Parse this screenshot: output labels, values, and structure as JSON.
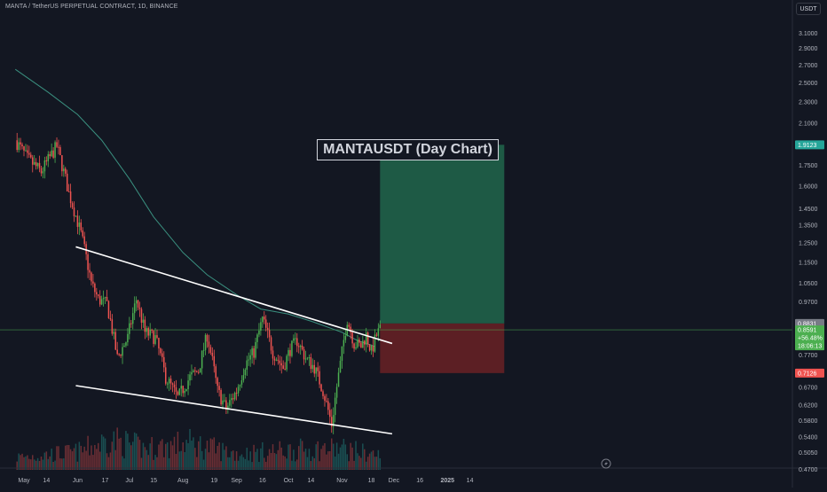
{
  "header": {
    "symbol_title": "MANTA / TetherUS PERPETUAL CONTRACT, 1D, BINANCE",
    "currency_label": "USDT"
  },
  "annotation": {
    "headline": "MANTAUSDT (Day Chart)"
  },
  "colors": {
    "background": "#131722",
    "up": "#26a69a",
    "up_bright": "#4caf50",
    "down": "#ef5350",
    "ma_line": "#3a8f7f",
    "trendline": "#ffffff",
    "target_zone": "#1e5a45",
    "stop_zone": "#5c1f24",
    "current_price_line": "#4caf50"
  },
  "chart_data": {
    "type": "candlestick",
    "scale": "log",
    "ylim": [
      0.469,
      3.2
    ],
    "y_ticks": [
      "3.1000",
      "2.9000",
      "2.7000",
      "2.5000",
      "2.3000",
      "2.1000",
      "1.7500",
      "1.6000",
      "1.4500",
      "1.3500",
      "1.2500",
      "1.1500",
      "1.0500",
      "0.9700",
      "0.7700",
      "0.6700",
      "0.6200",
      "0.5800",
      "0.5400",
      "0.5050",
      "0.4700"
    ],
    "x_ticks": [
      "May",
      "14",
      "Jun",
      "17",
      "Jul",
      "15",
      "Aug",
      "19",
      "Sep",
      "16",
      "Oct",
      "14",
      "Nov",
      "18",
      "Dec",
      "16",
      "2025",
      "14"
    ],
    "x_ticks_bold": [
      "2025"
    ],
    "price_tags": [
      {
        "label": "1.9123",
        "value": 1.9123,
        "kind": "target"
      },
      {
        "label": "0.8831",
        "value": 0.8831,
        "kind": "entry"
      },
      {
        "label": "0.8591",
        "sub1": "+56.48%",
        "sub2": "18:06:13",
        "value": 0.8591,
        "kind": "current"
      },
      {
        "label": "0.7126",
        "value": 0.7126,
        "kind": "stop"
      }
    ],
    "position": {
      "target": 1.9123,
      "entry": 0.8831,
      "stop": 0.7126
    },
    "trendlines": [
      {
        "name": "upper",
        "start": {
          "date": "2024-05-31",
          "price": 1.23
        },
        "end": {
          "date": "2024-11-30",
          "price": 0.81
        }
      },
      {
        "name": "lower",
        "start": {
          "date": "2024-05-31",
          "price": 0.675
        },
        "end": {
          "date": "2024-11-30",
          "price": 0.548
        }
      }
    ],
    "moving_average": {
      "dates": [
        "2024-04-26",
        "2024-05-15",
        "2024-06-01",
        "2024-06-15",
        "2024-07-01",
        "2024-07-15",
        "2024-08-01",
        "2024-08-15",
        "2024-09-01",
        "2024-09-15",
        "2024-10-01",
        "2024-10-15",
        "2024-11-01",
        "2024-11-10",
        "2024-11-20"
      ],
      "values": [
        2.65,
        2.4,
        2.18,
        1.95,
        1.65,
        1.4,
        1.2,
        1.09,
        1.0,
        0.94,
        0.92,
        0.89,
        0.85,
        0.82,
        0.8
      ]
    },
    "price_path": {
      "dates": [
        "2024-04-26",
        "2024-05-03",
        "2024-05-11",
        "2024-05-20",
        "2024-05-27",
        "2024-06-03",
        "2024-06-09",
        "2024-06-13",
        "2024-06-18",
        "2024-06-24",
        "2024-06-30",
        "2024-07-05",
        "2024-07-10",
        "2024-07-16",
        "2024-07-22",
        "2024-07-29",
        "2024-08-05",
        "2024-08-10",
        "2024-08-15",
        "2024-08-21",
        "2024-08-26",
        "2024-09-01",
        "2024-09-06",
        "2024-09-11",
        "2024-09-16",
        "2024-09-22",
        "2024-09-28",
        "2024-10-02",
        "2024-10-06",
        "2024-10-11",
        "2024-10-16",
        "2024-10-21",
        "2024-10-26",
        "2024-10-31",
        "2024-11-04",
        "2024-11-08",
        "2024-11-12",
        "2024-11-15",
        "2024-11-18",
        "2024-11-21",
        "2024-11-23"
      ],
      "values": [
        1.95,
        1.8,
        1.7,
        1.9,
        1.55,
        1.3,
        1.05,
        0.98,
        0.96,
        0.76,
        0.83,
        0.98,
        0.85,
        0.83,
        0.7,
        0.64,
        0.7,
        0.72,
        0.84,
        0.66,
        0.61,
        0.66,
        0.74,
        0.78,
        0.9,
        0.78,
        0.73,
        0.79,
        0.82,
        0.76,
        0.73,
        0.66,
        0.57,
        0.74,
        0.9,
        0.81,
        0.8,
        0.84,
        0.78,
        0.84,
        0.86
      ]
    },
    "volume_profile": {
      "dates": [
        "2024-04-26",
        "2024-06-01",
        "2024-06-20",
        "2024-07-10",
        "2024-08-05",
        "2024-09-01",
        "2024-10-01",
        "2024-11-01",
        "2024-11-23"
      ],
      "values": [
        0.35,
        0.5,
        0.85,
        0.6,
        0.75,
        0.45,
        0.55,
        0.6,
        0.4
      ]
    }
  }
}
